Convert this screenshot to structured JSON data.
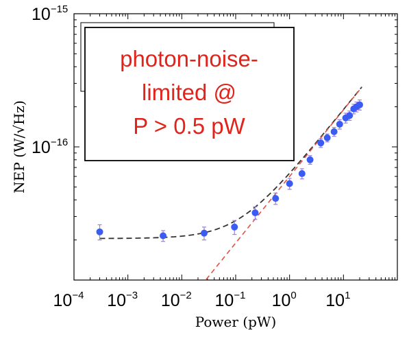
{
  "chart_data": {
    "type": "scatter",
    "xlabel": "Power (pW)",
    "ylabel": "NEP (W/√Hz)",
    "xscale": "log",
    "yscale": "log",
    "xlim": [
      0.0001,
      100
    ],
    "ylim": [
      1e-17,
      1e-15
    ],
    "x_tick_labels": [
      {
        "value": 0.0001,
        "base": "10",
        "exp": "−4"
      },
      {
        "value": 0.001,
        "base": "10",
        "exp": "−3"
      },
      {
        "value": 0.01,
        "base": "10",
        "exp": "−2"
      },
      {
        "value": 0.1,
        "base": "10",
        "exp": "−1"
      },
      {
        "value": 1,
        "base": "10",
        "exp": "0"
      },
      {
        "value": 10,
        "base": "10",
        "exp": "1"
      }
    ],
    "y_tick_labels": [
      {
        "value": 1e-15,
        "base": "10",
        "exp": "−15"
      },
      {
        "value": 1e-16,
        "base": "10",
        "exp": "−16"
      }
    ],
    "grid": false,
    "series": [
      {
        "marker_color": "#3b5cf2",
        "error_bar_color": "#9a7fe0",
        "points": [
          {
            "x": 0.0003,
            "y": 2.3e-17,
            "err": 3e-18
          },
          {
            "x": 0.0045,
            "y": 2.15e-17,
            "err": 2e-18
          },
          {
            "x": 0.026,
            "y": 2.25e-17,
            "err": 2.5e-18
          },
          {
            "x": 0.095,
            "y": 2.5e-17,
            "err": 3e-18
          },
          {
            "x": 0.23,
            "y": 3.2e-17,
            "err": 3.5e-18
          },
          {
            "x": 0.55,
            "y": 4.1e-17,
            "err": 4e-18
          },
          {
            "x": 1.0,
            "y": 5.3e-17,
            "err": 5e-18
          },
          {
            "x": 1.7,
            "y": 6.3e-17,
            "err": 5.5e-18
          },
          {
            "x": 2.4,
            "y": 8e-17,
            "err": 6e-18
          },
          {
            "x": 3.8,
            "y": 1.07e-16,
            "err": 8e-18
          },
          {
            "x": 5.0,
            "y": 1.17e-16,
            "err": 8e-18
          },
          {
            "x": 6.7,
            "y": 1.3e-16,
            "err": 1e-17
          },
          {
            "x": 8.5,
            "y": 1.48e-16,
            "err": 1.2e-17
          },
          {
            "x": 11.0,
            "y": 1.65e-16,
            "err": 1.4e-17
          },
          {
            "x": 13.0,
            "y": 1.72e-16,
            "err": 1.4e-17
          },
          {
            "x": 15.5,
            "y": 1.93e-16,
            "err": 1.6e-17
          },
          {
            "x": 17.5,
            "y": 2e-16,
            "err": 1.7e-17
          },
          {
            "x": 20.0,
            "y": 2.07e-16,
            "err": 1.8e-17
          }
        ]
      }
    ],
    "fit_lines": [
      {
        "style": "dashed",
        "color": "#333333",
        "kind": "total-noise-model"
      },
      {
        "style": "dashed",
        "color": "#e05040",
        "kind": "photon-noise-only"
      }
    ],
    "annotation": {
      "lines": [
        "photon-noise-",
        "limited @",
        "P > 0.5 pW"
      ],
      "color": "#e0241b",
      "placement": "top-left"
    }
  }
}
